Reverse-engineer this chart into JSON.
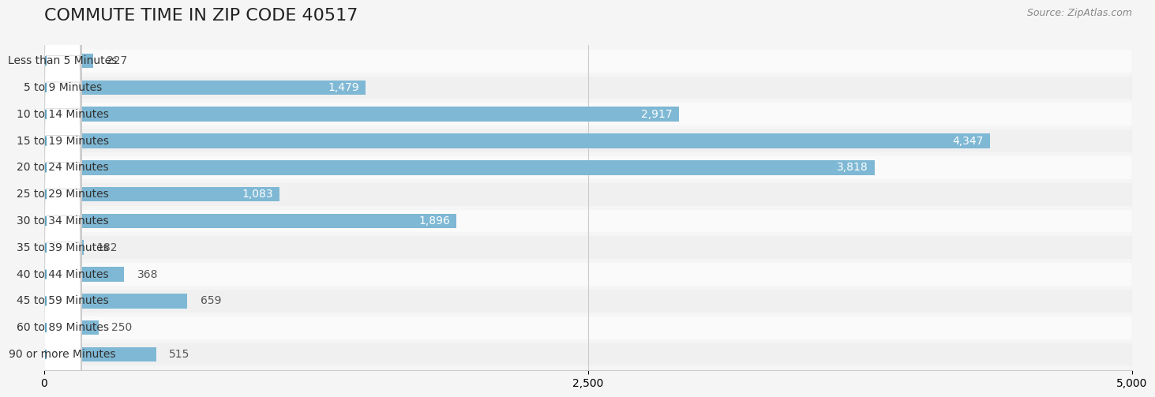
{
  "title": "COMMUTE TIME IN ZIP CODE 40517",
  "source_text": "Source: ZipAtlas.com",
  "categories": [
    "Less than 5 Minutes",
    "5 to 9 Minutes",
    "10 to 14 Minutes",
    "15 to 19 Minutes",
    "20 to 24 Minutes",
    "25 to 29 Minutes",
    "30 to 34 Minutes",
    "35 to 39 Minutes",
    "40 to 44 Minutes",
    "45 to 59 Minutes",
    "60 to 89 Minutes",
    "90 or more Minutes"
  ],
  "values": [
    227,
    1479,
    2917,
    4347,
    3818,
    1083,
    1896,
    182,
    368,
    659,
    250,
    515
  ],
  "bar_color": "#7eb8d4",
  "bar_color_dark": "#5aa0c0",
  "label_color_outside": "#555555",
  "label_color_inside": "#ffffff",
  "background_color": "#f5f5f5",
  "row_bg_light": "#f0f0f0",
  "row_bg_white": "#fafafa",
  "xlim": [
    0,
    5000
  ],
  "xticks": [
    0,
    2500,
    5000
  ],
  "title_fontsize": 16,
  "label_fontsize": 10,
  "value_fontsize": 10,
  "source_fontsize": 9,
  "inside_label_threshold": 800
}
